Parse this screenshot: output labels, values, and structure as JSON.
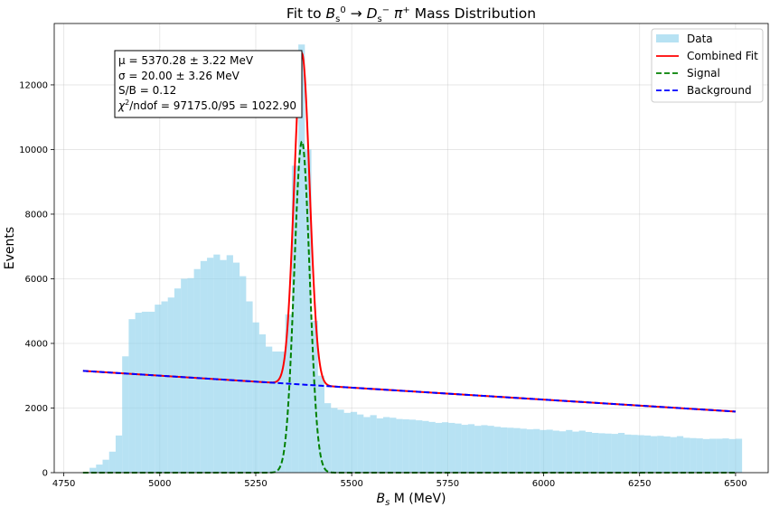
{
  "chart_data": {
    "type": "histogram_fit",
    "title_parts": [
      "Fit to ",
      "B",
      "s",
      "0",
      " → ",
      "D",
      "s",
      "−",
      " π",
      "+",
      " Mass Distribution"
    ],
    "xlabel_parts": [
      "B",
      "s",
      " M (MeV)"
    ],
    "ylabel": "Events",
    "xlim": [
      4725,
      6585
    ],
    "ylim": [
      0,
      13900
    ],
    "xticks": [
      4750,
      5000,
      5250,
      5500,
      5750,
      6000,
      6250,
      6500
    ],
    "yticks": [
      0,
      2000,
      4000,
      6000,
      8000,
      10000,
      12000
    ],
    "grid": true,
    "legend_position": "top-right",
    "histogram": {
      "name": "Data",
      "color": "#87ceeb",
      "bin_start": 4800,
      "bin_width": 17,
      "counts": [
        0,
        150,
        250,
        400,
        650,
        1150,
        3600,
        4750,
        4950,
        4980,
        4980,
        5200,
        5300,
        5420,
        5700,
        6000,
        6020,
        6300,
        6550,
        6650,
        6750,
        6580,
        6730,
        6500,
        6080,
        5300,
        4650,
        4280,
        3900,
        3750,
        3750,
        4900,
        9500,
        13250,
        10000,
        4700,
        3000,
        2150,
        2000,
        1950,
        1850,
        1880,
        1800,
        1720,
        1780,
        1680,
        1720,
        1700,
        1660,
        1650,
        1640,
        1620,
        1600,
        1570,
        1540,
        1560,
        1540,
        1520,
        1480,
        1500,
        1450,
        1470,
        1450,
        1420,
        1400,
        1390,
        1380,
        1360,
        1340,
        1350,
        1320,
        1330,
        1300,
        1280,
        1320,
        1270,
        1300,
        1260,
        1230,
        1220,
        1210,
        1200,
        1230,
        1180,
        1170,
        1160,
        1150,
        1130,
        1140,
        1120,
        1100,
        1130,
        1080,
        1070,
        1060,
        1040,
        1050,
        1050,
        1060,
        1040,
        1050
      ]
    },
    "series": [
      {
        "name": "Combined Fit",
        "color": "#ff0000",
        "style": "solid"
      },
      {
        "name": "Signal",
        "color": "#008000",
        "style": "dashed"
      },
      {
        "name": "Background",
        "color": "#0000ff",
        "style": "dashed"
      }
    ],
    "fit": {
      "x_range": [
        4800,
        6500
      ],
      "background_linear": {
        "y_at_start": 3150,
        "y_at_end": 1890
      },
      "signal_gauss": {
        "amplitude": 10250,
        "mu": 5370.28,
        "sigma": 20.0
      }
    },
    "stats": {
      "line1": "μ = 5370.28 ± 3.22 MeV",
      "line2": "σ = 20.00 ± 3.26 MeV",
      "line3": "S/B = 0.12",
      "line4_prefix": "χ",
      "line4_sup": "2",
      "line4_rest": "/ndof = 97175.0/95 = 1022.90"
    }
  }
}
